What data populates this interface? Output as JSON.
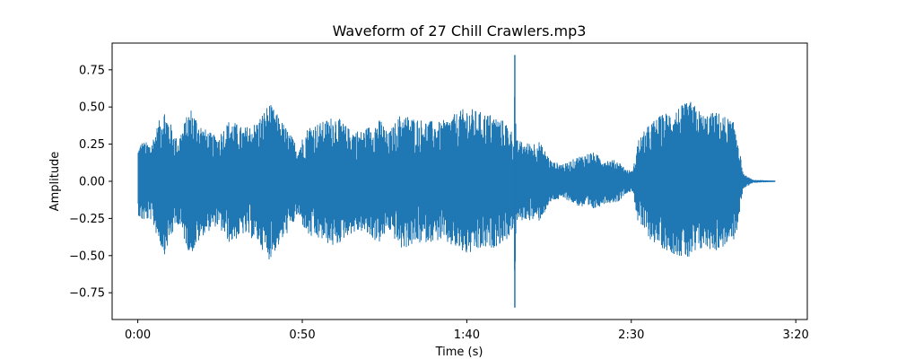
{
  "chart_data": {
    "type": "line",
    "title": "Waveform of 27 Chill Crawlers.mp3",
    "xlabel": "Time (s)",
    "ylabel": "Amplitude",
    "xlim": [
      -7.8,
      203.5
    ],
    "ylim": [
      -0.93,
      0.93
    ],
    "x_ticks": [
      {
        "value": 0,
        "label": "0:00"
      },
      {
        "value": 50,
        "label": "0:50"
      },
      {
        "value": 100,
        "label": "1:40"
      },
      {
        "value": 150,
        "label": "2:30"
      },
      {
        "value": 200,
        "label": "3:20"
      }
    ],
    "y_ticks": [
      {
        "value": -0.75,
        "label": "−0.75"
      },
      {
        "value": -0.5,
        "label": "−0.50"
      },
      {
        "value": -0.25,
        "label": "−0.25"
      },
      {
        "value": 0,
        "label": "0.00"
      },
      {
        "value": 0.25,
        "label": "0.25"
      },
      {
        "value": 0.5,
        "label": "0.50"
      },
      {
        "value": 0.75,
        "label": "0.75"
      }
    ],
    "grid": false,
    "legend": "none",
    "series_color": "#1f77b4",
    "duration_s": 193.6,
    "envelope": {
      "time_s": [
        0,
        1,
        4,
        8,
        12,
        16,
        20,
        24,
        28,
        32,
        36,
        40,
        44,
        47.5,
        48.5,
        52,
        56,
        60,
        64,
        68,
        72,
        74,
        76,
        80,
        84,
        88,
        92,
        96,
        100,
        104,
        108,
        112,
        114.3,
        114.6,
        115,
        118,
        122,
        124,
        126,
        130,
        134,
        138,
        142,
        146,
        148.5,
        150.5,
        152,
        156,
        160,
        164,
        168,
        172,
        176,
        180,
        182,
        183,
        184,
        187,
        193.6
      ],
      "amplitude": [
        0.22,
        0.27,
        0.26,
        0.5,
        0.28,
        0.5,
        0.36,
        0.3,
        0.42,
        0.36,
        0.4,
        0.53,
        0.4,
        0.28,
        0.23,
        0.38,
        0.4,
        0.45,
        0.36,
        0.34,
        0.4,
        0.42,
        0.32,
        0.46,
        0.43,
        0.41,
        0.4,
        0.45,
        0.5,
        0.47,
        0.45,
        0.4,
        0.32,
        0.85,
        0.28,
        0.26,
        0.27,
        0.2,
        0.13,
        0.12,
        0.17,
        0.2,
        0.15,
        0.14,
        0.08,
        0.07,
        0.28,
        0.4,
        0.46,
        0.5,
        0.54,
        0.45,
        0.47,
        0.42,
        0.38,
        0.2,
        0.05,
        0.01,
        0.005
      ]
    },
    "peak_amplitude": {
      "time_s": 114.6,
      "max": 0.85,
      "min": -0.85
    }
  }
}
